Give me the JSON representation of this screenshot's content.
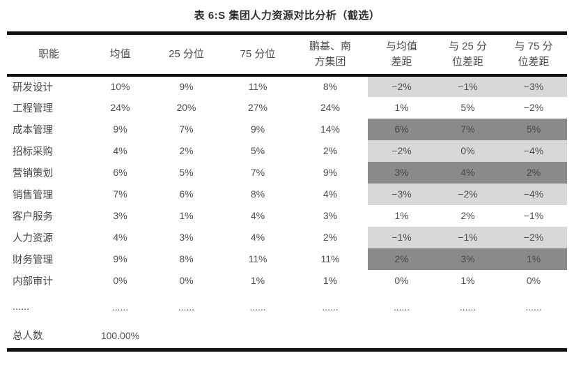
{
  "title": "表 6:S 集团人力资源对比分析（截选）",
  "colors": {
    "line": "#111111",
    "highlight_light": "#d8d8d8",
    "highlight_dark": "#8a8a8a"
  },
  "table": {
    "highlight_start_col": 5,
    "columns": [
      {
        "label": "职能"
      },
      {
        "label": "均值"
      },
      {
        "label": "25 分位"
      },
      {
        "label": "75 分位"
      },
      {
        "label": "鹏基、南\n方集团"
      },
      {
        "label": "与均值\n差距"
      },
      {
        "label": "与 25 分\n位差距"
      },
      {
        "label": "与 75 分\n位差距"
      }
    ],
    "rows": [
      {
        "cells": [
          "研发设计",
          "10%",
          "9%",
          "11%",
          "8%",
          "−2%",
          "−1%",
          "−3%"
        ],
        "highlight": "light",
        "kind": ""
      },
      {
        "cells": [
          "工程管理",
          "24%",
          "20%",
          "27%",
          "24%",
          "1%",
          "5%",
          "−2%"
        ],
        "highlight": "none",
        "kind": ""
      },
      {
        "cells": [
          "成本管理",
          "9%",
          "7%",
          "9%",
          "14%",
          "6%",
          "7%",
          "5%"
        ],
        "highlight": "dark",
        "kind": ""
      },
      {
        "cells": [
          "招标采购",
          "4%",
          "2%",
          "5%",
          "2%",
          "−2%",
          "0%",
          "−4%"
        ],
        "highlight": "light",
        "kind": ""
      },
      {
        "cells": [
          "营销策划",
          "6%",
          "5%",
          "7%",
          "9%",
          "3%",
          "4%",
          "2%"
        ],
        "highlight": "dark",
        "kind": ""
      },
      {
        "cells": [
          "销售管理",
          "7%",
          "6%",
          "8%",
          "4%",
          "−3%",
          "−2%",
          "−4%"
        ],
        "highlight": "light",
        "kind": ""
      },
      {
        "cells": [
          "客户服务",
          "3%",
          "1%",
          "4%",
          "3%",
          "1%",
          "2%",
          "−1%"
        ],
        "highlight": "none",
        "kind": ""
      },
      {
        "cells": [
          "人力资源",
          "4%",
          "3%",
          "4%",
          "2%",
          "−1%",
          "−1%",
          "−2%"
        ],
        "highlight": "light",
        "kind": ""
      },
      {
        "cells": [
          "财务管理",
          "9%",
          "8%",
          "11%",
          "11%",
          "2%",
          "3%",
          "1%"
        ],
        "highlight": "dark",
        "kind": ""
      },
      {
        "cells": [
          "内部审计",
          "0%",
          "0%",
          "1%",
          "1%",
          "0%",
          "1%",
          "0%"
        ],
        "highlight": "none",
        "kind": ""
      },
      {
        "cells": [
          "......",
          "......",
          "......",
          "......",
          "......",
          "......",
          "......",
          "......"
        ],
        "highlight": "none",
        "kind": "dots"
      },
      {
        "cells": [
          "总人数",
          "100.00%",
          "",
          "",
          "",
          "",
          "",
          ""
        ],
        "highlight": "none",
        "kind": "total"
      }
    ]
  }
}
